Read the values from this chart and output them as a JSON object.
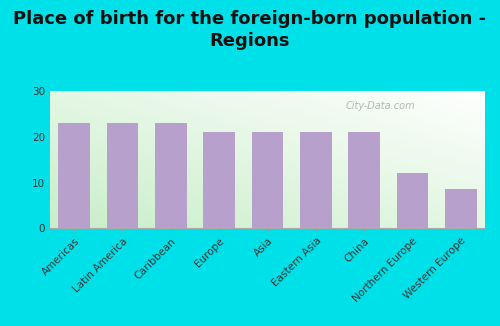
{
  "title": "Place of birth for the foreign-born population -\nRegions",
  "categories": [
    "Americas",
    "Latin America",
    "Caribbean",
    "Europe",
    "Asia",
    "Eastern Asia",
    "China",
    "Northern Europe",
    "Western Europe"
  ],
  "values": [
    23.0,
    23.0,
    23.0,
    21.0,
    21.0,
    21.0,
    21.0,
    12.0,
    8.5
  ],
  "bar_color": "#b8a0cc",
  "background_outer": "#00e0e8",
  "ylim": [
    0,
    30
  ],
  "yticks": [
    0,
    10,
    20,
    30
  ],
  "watermark": "City-Data.com",
  "title_fontsize": 13,
  "tick_fontsize": 7.5,
  "grad_colors": [
    "#c8eec8",
    "#ffffff"
  ],
  "title_color": "#111111"
}
